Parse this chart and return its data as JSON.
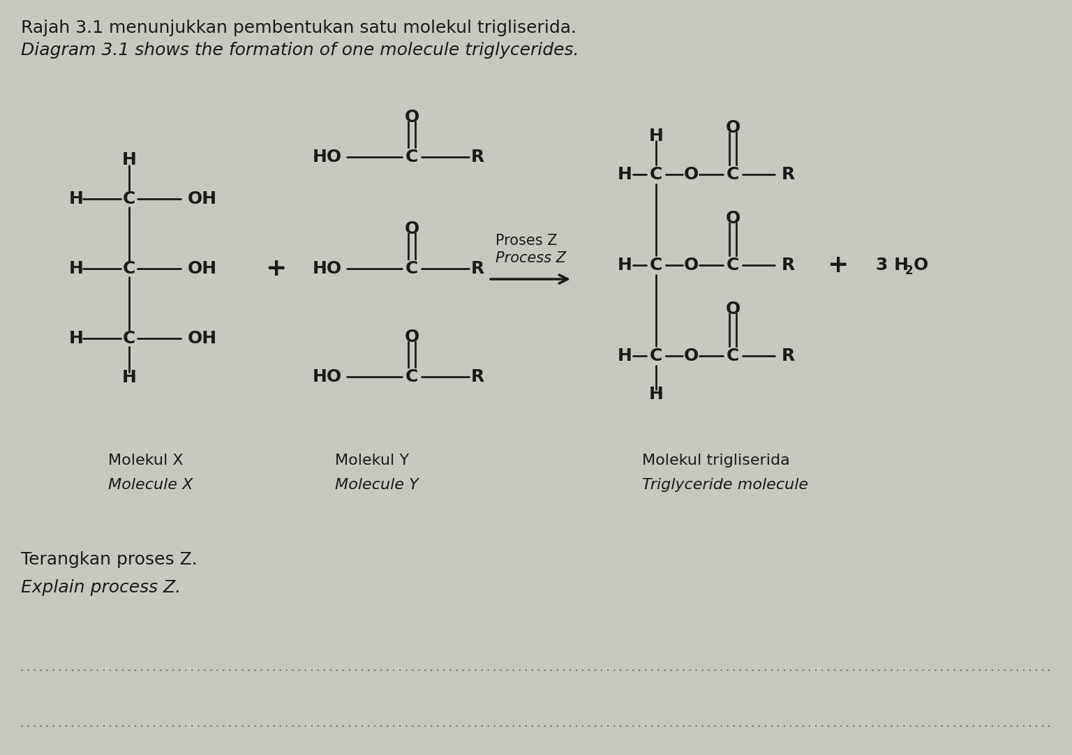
{
  "title1": "Rajah 3.1 menunjukkan pembentukan satu molekul trigliserida.",
  "title2": "Diagram 3.1 shows the formation of one molecule triglycerides.",
  "bg_color": "#c8c8c0",
  "text_color": "#1a1a1a",
  "label_molekul_x_1": "Molekul X",
  "label_molekul_x_2": "Molecule X",
  "label_molekul_y_1": "Molekul Y",
  "label_molekul_y_2": "Molecule Y",
  "label_trigliserida_1": "Molekul trigliserida",
  "label_trigliserida_2": "Triglyceride molecule",
  "proses_z_1": "Proses Z",
  "proses_z_2": "Process Z",
  "bottom_label_1": "Terangkan proses Z.",
  "bottom_label_2": "Explain process Z."
}
